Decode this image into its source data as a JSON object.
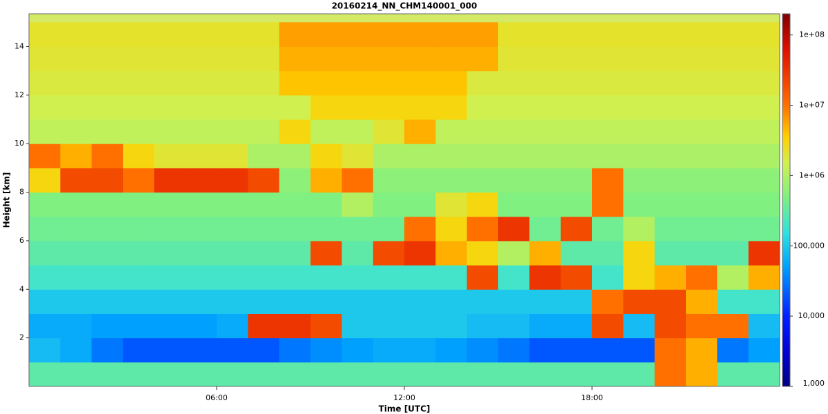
{
  "chart_data": {
    "type": "heatmap",
    "title": "20160214_NN_CHM140001_000",
    "x_label": "Time [UTC]",
    "y_label": "Height [km]",
    "x": [
      0.5,
      1.5,
      2.5,
      3.5,
      4.5,
      5.5,
      6.5,
      7.5,
      8.5,
      9.5,
      10.5,
      11.5,
      12.5,
      13.5,
      14.5,
      15.5,
      16.5,
      17.5,
      18.5,
      19.5,
      20.5,
      21.5,
      22.5,
      23.5
    ],
    "y": [
      0.5,
      1.5,
      2.5,
      3.5,
      4.5,
      5.5,
      6.5,
      7.5,
      8.5,
      9.5,
      10.5,
      11.5,
      12.5,
      13.5,
      14.5
    ],
    "values": [
      [
        300000.0,
        300000.0,
        300000.0,
        300000.0,
        300000.0,
        300000.0,
        300000.0,
        300000.0,
        300000.0,
        300000.0,
        300000.0,
        300000.0,
        300000.0,
        300000.0,
        300000.0,
        300000.0,
        300000.0,
        300000.0,
        300000.0,
        300000.0,
        10000000.0,
        5000000.0,
        300000.0,
        300000.0
      ],
      [
        80000.0,
        60000.0,
        30000.0,
        20000.0,
        20000.0,
        20000.0,
        20000.0,
        20000.0,
        30000.0,
        40000.0,
        50000.0,
        60000.0,
        60000.0,
        50000.0,
        40000.0,
        30000.0,
        20000.0,
        20000.0,
        20000.0,
        20000.0,
        10000000.0,
        5000000.0,
        30000.0,
        50000.0
      ],
      [
        60000.0,
        60000.0,
        50000.0,
        50000.0,
        50000.0,
        50000.0,
        60000.0,
        30000000.0,
        30000000.0,
        20000000.0,
        100000.0,
        100000.0,
        100000.0,
        100000.0,
        80000.0,
        80000.0,
        60000.0,
        60000.0,
        20000000.0,
        80000.0,
        20000000.0,
        10000000.0,
        10000000.0,
        80000.0
      ],
      [
        100000.0,
        100000.0,
        100000.0,
        100000.0,
        100000.0,
        100000.0,
        100000.0,
        100000.0,
        100000.0,
        100000.0,
        100000.0,
        100000.0,
        100000.0,
        100000.0,
        100000.0,
        100000.0,
        100000.0,
        100000.0,
        10000000.0,
        20000000.0,
        20000000.0,
        5000000.0,
        200000.0,
        200000.0
      ],
      [
        200000.0,
        200000.0,
        200000.0,
        200000.0,
        200000.0,
        200000.0,
        200000.0,
        200000.0,
        200000.0,
        200000.0,
        200000.0,
        200000.0,
        200000.0,
        200000.0,
        20000000.0,
        200000.0,
        30000000.0,
        20000000.0,
        200000.0,
        3000000.0,
        5000000.0,
        10000000.0,
        1000000.0,
        5000000.0
      ],
      [
        300000.0,
        300000.0,
        300000.0,
        300000.0,
        300000.0,
        300000.0,
        300000.0,
        300000.0,
        300000.0,
        20000000.0,
        300000.0,
        20000000.0,
        30000000.0,
        5000000.0,
        3000000.0,
        1000000.0,
        5000000.0,
        300000.0,
        300000.0,
        3000000.0,
        300000.0,
        300000.0,
        300000.0,
        30000000.0
      ],
      [
        400000.0,
        400000.0,
        400000.0,
        400000.0,
        400000.0,
        400000.0,
        400000.0,
        400000.0,
        400000.0,
        400000.0,
        400000.0,
        400000.0,
        10000000.0,
        3000000.0,
        10000000.0,
        30000000.0,
        400000.0,
        20000000.0,
        400000.0,
        1000000.0,
        400000.0,
        400000.0,
        400000.0,
        400000.0
      ],
      [
        500000.0,
        500000.0,
        500000.0,
        500000.0,
        500000.0,
        500000.0,
        500000.0,
        500000.0,
        500000.0,
        500000.0,
        1000000.0,
        500000.0,
        500000.0,
        2000000.0,
        3000000.0,
        500000.0,
        500000.0,
        500000.0,
        10000000.0,
        500000.0,
        500000.0,
        500000.0,
        500000.0,
        500000.0
      ],
      [
        3000000.0,
        20000000.0,
        20000000.0,
        10000000.0,
        30000000.0,
        30000000.0,
        30000000.0,
        20000000.0,
        600000.0,
        5000000.0,
        10000000.0,
        600000.0,
        600000.0,
        600000.0,
        600000.0,
        600000.0,
        600000.0,
        600000.0,
        10000000.0,
        600000.0,
        600000.0,
        600000.0,
        600000.0,
        600000.0
      ],
      [
        10000000.0,
        5000000.0,
        10000000.0,
        3000000.0,
        2000000.0,
        2000000.0,
        2000000.0,
        900000.0,
        900000.0,
        3000000.0,
        2000000.0,
        900000.0,
        900000.0,
        900000.0,
        900000.0,
        900000.0,
        900000.0,
        900000.0,
        900000.0,
        900000.0,
        900000.0,
        900000.0,
        900000.0,
        900000.0
      ],
      [
        1200000.0,
        1200000.0,
        1200000.0,
        1200000.0,
        1200000.0,
        1200000.0,
        1200000.0,
        1200000.0,
        3000000.0,
        1200000.0,
        1200000.0,
        2000000.0,
        5000000.0,
        1200000.0,
        1200000.0,
        1200000.0,
        1200000.0,
        1200000.0,
        1200000.0,
        1200000.0,
        1200000.0,
        1200000.0,
        1200000.0,
        1200000.0
      ],
      [
        1500000.0,
        1500000.0,
        1500000.0,
        1500000.0,
        1500000.0,
        1500000.0,
        1500000.0,
        1500000.0,
        1500000.0,
        3000000.0,
        3000000.0,
        3000000.0,
        3000000.0,
        3000000.0,
        1500000.0,
        1500000.0,
        1500000.0,
        1500000.0,
        1500000.0,
        1500000.0,
        1500000.0,
        1500000.0,
        1500000.0,
        1500000.0
      ],
      [
        1800000.0,
        1800000.0,
        1800000.0,
        1800000.0,
        1800000.0,
        1800000.0,
        1800000.0,
        1800000.0,
        4000000.0,
        4000000.0,
        4000000.0,
        4000000.0,
        4000000.0,
        4000000.0,
        1800000.0,
        1800000.0,
        1800000.0,
        1800000.0,
        1800000.0,
        1800000.0,
        1800000.0,
        1800000.0,
        1800000.0,
        1800000.0
      ],
      [
        2000000.0,
        2000000.0,
        2000000.0,
        2000000.0,
        2000000.0,
        2000000.0,
        2000000.0,
        2000000.0,
        5000000.0,
        5000000.0,
        5000000.0,
        5000000.0,
        5000000.0,
        5000000.0,
        5000000.0,
        2000000.0,
        2000000.0,
        2000000.0,
        2000000.0,
        2000000.0,
        2000000.0,
        2000000.0,
        2000000.0,
        2000000.0
      ],
      [
        2200000.0,
        2200000.0,
        2200000.0,
        2200000.0,
        2200000.0,
        2200000.0,
        2200000.0,
        2200000.0,
        6000000.0,
        6000000.0,
        6000000.0,
        6000000.0,
        6000000.0,
        6000000.0,
        6000000.0,
        2200000.0,
        2200000.0,
        2200000.0,
        2200000.0,
        2200000.0,
        2200000.0,
        2200000.0,
        2200000.0,
        2200000.0
      ]
    ],
    "xlim": [
      0,
      24
    ],
    "xticks": [
      {
        "value": 6,
        "label": "06:00"
      },
      {
        "value": 12,
        "label": "12:00"
      },
      {
        "value": 18,
        "label": "18:00"
      }
    ],
    "ylim": [
      0,
      15.35
    ],
    "yticks": [
      2,
      4,
      6,
      8,
      10,
      12,
      14
    ],
    "clim": [
      1000,
      200000000
    ],
    "color_log_scale": true,
    "cticks": [
      {
        "value": 100000000,
        "label": "1e+08"
      },
      {
        "value": 10000000,
        "label": "1e+07"
      },
      {
        "value": 1000000,
        "label": "1e+06"
      },
      {
        "value": 100000,
        "label": "100,000"
      },
      {
        "value": 10000,
        "label": "10,000"
      },
      {
        "value": 1000,
        "label": "1,000"
      }
    ],
    "colorscale": [
      [
        1000,
        "#000080"
      ],
      [
        3000,
        "#0000d0"
      ],
      [
        10000,
        "#0020ff"
      ],
      [
        50000,
        "#00a0ff"
      ],
      [
        150000,
        "#30e0e0"
      ],
      [
        500000,
        "#80f080"
      ],
      [
        1500000,
        "#d0f050"
      ],
      [
        3500000,
        "#ffd000"
      ],
      [
        10000000,
        "#ff7000"
      ],
      [
        60000000,
        "#e01000"
      ],
      [
        200000000,
        "#800000"
      ]
    ]
  }
}
